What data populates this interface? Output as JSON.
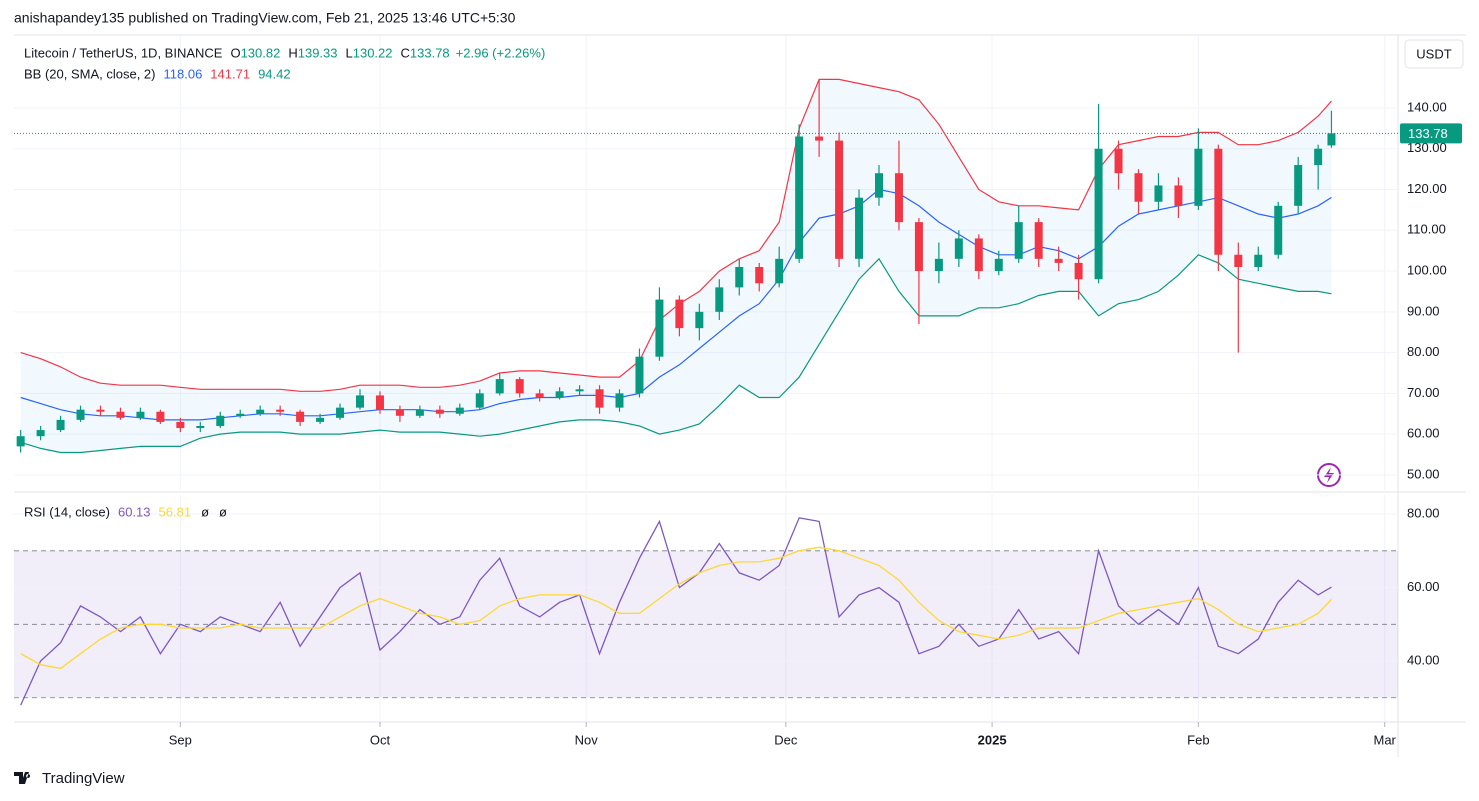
{
  "header": {
    "published": "anishapandey135 published on TradingView.com, Feb 21, 2025 13:46 UTC+5:30"
  },
  "footer": {
    "brand": "TradingView"
  },
  "chart_data": [
    {
      "type": "candlestick",
      "title": "Litecoin / TetherUS, 1D, BINANCE",
      "ohlc_labels": [
        "O",
        "H",
        "L",
        "C"
      ],
      "change": "+2.96 (+2.26%)",
      "currency": "USDT",
      "up_color": "#089981",
      "down_color": "#f23645",
      "x": [
        "2024-08-08",
        "2024-08-11",
        "2024-08-14",
        "2024-08-17",
        "2024-08-20",
        "2024-08-23",
        "2024-08-26",
        "2024-08-29",
        "2024-09-01",
        "2024-09-04",
        "2024-09-07",
        "2024-09-10",
        "2024-09-13",
        "2024-09-16",
        "2024-09-19",
        "2024-09-22",
        "2024-09-25",
        "2024-09-28",
        "2024-10-01",
        "2024-10-04",
        "2024-10-07",
        "2024-10-10",
        "2024-10-13",
        "2024-10-16",
        "2024-10-19",
        "2024-10-22",
        "2024-10-25",
        "2024-10-28",
        "2024-10-31",
        "2024-11-03",
        "2024-11-06",
        "2024-11-09",
        "2024-11-12",
        "2024-11-15",
        "2024-11-18",
        "2024-11-21",
        "2024-11-24",
        "2024-11-27",
        "2024-11-30",
        "2024-12-03",
        "2024-12-06",
        "2024-12-09",
        "2024-12-12",
        "2024-12-15",
        "2024-12-18",
        "2024-12-21",
        "2024-12-24",
        "2024-12-27",
        "2024-12-30",
        "2025-01-02",
        "2025-01-05",
        "2025-01-08",
        "2025-01-11",
        "2025-01-14",
        "2025-01-17",
        "2025-01-20",
        "2025-01-23",
        "2025-01-26",
        "2025-01-29",
        "2025-02-01",
        "2025-02-04",
        "2025-02-07",
        "2025-02-10",
        "2025-02-13",
        "2025-02-16",
        "2025-02-19",
        "2025-02-21"
      ],
      "open": [
        57,
        59.5,
        61,
        63.5,
        66,
        65.5,
        64,
        65.5,
        63,
        61.5,
        62,
        64.5,
        65,
        66,
        65.5,
        63,
        64,
        66.5,
        69.5,
        66,
        64.5,
        66,
        65,
        66.5,
        70,
        73.5,
        70,
        69,
        70.5,
        71,
        66.5,
        70,
        79,
        93,
        86,
        90,
        96,
        101,
        97,
        103,
        133,
        132,
        103,
        118,
        124,
        112,
        100,
        103,
        108,
        100,
        103,
        112,
        103,
        102,
        98,
        130,
        124,
        117,
        121,
        116,
        130,
        104,
        101,
        104,
        116,
        126,
        130.82
      ],
      "high": [
        61,
        62,
        64.5,
        67,
        67,
        66.5,
        66.5,
        66,
        64,
        63,
        65.5,
        66,
        67,
        67,
        66,
        65,
        67.5,
        71,
        70.5,
        67,
        67,
        67,
        67.5,
        71,
        75,
        74,
        71,
        71.5,
        72,
        72,
        71,
        81,
        96,
        94,
        92,
        98,
        103,
        102,
        106,
        136,
        147,
        134,
        120,
        126,
        132,
        113,
        107,
        110,
        109,
        105,
        116,
        113,
        106,
        104,
        141,
        132,
        125,
        124,
        123,
        135,
        131,
        107,
        106,
        117,
        128,
        131,
        139.33
      ],
      "low": [
        55.5,
        58.5,
        60.5,
        63,
        64.5,
        63.5,
        63.5,
        62.5,
        60.5,
        60.5,
        61.5,
        64,
        64.5,
        64.5,
        62,
        62.5,
        63.5,
        66,
        65,
        63,
        64,
        64,
        64.5,
        66,
        69.5,
        69,
        68,
        68.5,
        69.5,
        65,
        65.5,
        69,
        78,
        84,
        83,
        88,
        94,
        95,
        96,
        102,
        128,
        101,
        101,
        116,
        110,
        87,
        97,
        101,
        98,
        99,
        102,
        101,
        100,
        93,
        97,
        120,
        114,
        115,
        113,
        115,
        100,
        80,
        100,
        103,
        114,
        120,
        130.22
      ],
      "close": [
        59.5,
        61,
        63.5,
        66,
        65.5,
        64,
        65.5,
        63,
        61.5,
        62,
        64.5,
        65,
        66,
        65.5,
        63,
        64,
        66.5,
        69.5,
        66,
        64.5,
        66,
        65,
        66.5,
        70,
        73.5,
        70,
        69,
        70.5,
        71,
        66.5,
        70,
        79,
        93,
        86,
        90,
        96,
        101,
        97,
        103,
        133,
        132,
        103,
        118,
        124,
        112,
        100,
        103,
        108,
        100,
        103,
        112,
        103,
        102,
        98,
        130,
        124,
        117,
        121,
        116,
        130,
        104,
        101,
        104,
        116,
        126,
        130,
        133.78
      ],
      "bands": {
        "label": "BB (20, SMA, close, 2)",
        "fill": "#2196f3",
        "series": [
          {
            "color": "#2962ff",
            "values": [
              69,
              67.5,
              66,
              65,
              64.5,
              64.5,
              64,
              63.5,
              63.5,
              63.5,
              64,
              64.5,
              65,
              65,
              64.5,
              64.5,
              65,
              65.5,
              66,
              66,
              66,
              65.5,
              65.5,
              66,
              67.5,
              68.5,
              69,
              69,
              69.5,
              69.5,
              69,
              70,
              74,
              77,
              81,
              85,
              89,
              92,
              98,
              107,
              113,
              114,
              116,
              120,
              119,
              116,
              112,
              109,
              106,
              104,
              104,
              106,
              105,
              103,
              106,
              111,
              114,
              115,
              116,
              117,
              118,
              116,
              114,
              113,
              114,
              116,
              118.06
            ]
          },
          {
            "color": "#f23645",
            "values": [
              80,
              78.5,
              76.5,
              74,
              72.5,
              72,
              72,
              72,
              71.5,
              71,
              71,
              71,
              71,
              71,
              70.5,
              70.5,
              71,
              72,
              72,
              72,
              71.5,
              71.5,
              72,
              73,
              75,
              75.5,
              75.5,
              75,
              74.5,
              74,
              74,
              78,
              88,
              92,
              95,
              100,
              103,
              105,
              112,
              135,
              147,
              147,
              146,
              145,
              144,
              142,
              136,
              128,
              120,
              117,
              116,
              116,
              115.5,
              115,
              125,
              131,
              132,
              133,
              133,
              134,
              134,
              131,
              131,
              132,
              134,
              138,
              141.71
            ]
          },
          {
            "color": "#089981",
            "values": [
              58,
              56.5,
              55.5,
              55.5,
              56,
              56.5,
              57,
              57,
              57,
              59,
              60,
              60.5,
              60.5,
              60.5,
              60,
              60,
              60,
              60.5,
              61,
              60.5,
              60.5,
              60.5,
              60,
              59.5,
              60,
              61,
              62,
              63,
              63.5,
              63.5,
              63,
              62,
              60,
              61,
              62.5,
              67,
              72,
              69,
              69,
              74,
              82,
              90,
              98,
              103,
              95,
              89,
              89,
              89,
              91,
              91,
              92,
              94,
              95,
              95,
              89,
              92,
              93,
              95,
              99,
              104,
              102,
              98,
              97,
              96,
              95,
              95,
              94.42
            ]
          }
        ]
      },
      "ylim": [
        46.3,
        157.9
      ],
      "yticks": [
        {
          "value": 140,
          "label": "140.00"
        },
        {
          "value": 130,
          "label": "130.00"
        },
        {
          "value": 120,
          "label": "120.00"
        },
        {
          "value": 110,
          "label": "110.00"
        },
        {
          "value": 100,
          "label": "100.00"
        },
        {
          "value": 90,
          "label": "90.00"
        },
        {
          "value": 80,
          "label": "80.00"
        },
        {
          "value": 70,
          "label": "70.00"
        },
        {
          "value": 60,
          "label": "60.00"
        },
        {
          "value": 50,
          "label": "50.00"
        }
      ],
      "xlim": [
        "2024-08-07",
        "2025-03-03"
      ],
      "xticks": [
        {
          "value": "2024-09-01",
          "label": "Sep"
        },
        {
          "value": "2024-10-01",
          "label": "Oct"
        },
        {
          "value": "2024-11-01",
          "label": "Nov"
        },
        {
          "value": "2024-12-01",
          "label": "Dec"
        },
        {
          "value": "2025-01-01",
          "label": "2025"
        },
        {
          "value": "2025-02-01",
          "label": "Feb"
        },
        {
          "value": "2025-03-01",
          "label": "Mar"
        }
      ],
      "grid": true
    },
    {
      "type": "line",
      "title": "RSI (14, close)",
      "na": [
        "ø",
        "ø"
      ],
      "x": [
        "2024-08-08",
        "2024-08-11",
        "2024-08-14",
        "2024-08-17",
        "2024-08-20",
        "2024-08-23",
        "2024-08-26",
        "2024-08-29",
        "2024-09-01",
        "2024-09-04",
        "2024-09-07",
        "2024-09-10",
        "2024-09-13",
        "2024-09-16",
        "2024-09-19",
        "2024-09-22",
        "2024-09-25",
        "2024-09-28",
        "2024-10-01",
        "2024-10-04",
        "2024-10-07",
        "2024-10-10",
        "2024-10-13",
        "2024-10-16",
        "2024-10-19",
        "2024-10-22",
        "2024-10-25",
        "2024-10-28",
        "2024-10-31",
        "2024-11-03",
        "2024-11-06",
        "2024-11-09",
        "2024-11-12",
        "2024-11-15",
        "2024-11-18",
        "2024-11-21",
        "2024-11-24",
        "2024-11-27",
        "2024-11-30",
        "2024-12-03",
        "2024-12-06",
        "2024-12-09",
        "2024-12-12",
        "2024-12-15",
        "2024-12-18",
        "2024-12-21",
        "2024-12-24",
        "2024-12-27",
        "2024-12-30",
        "2025-01-02",
        "2025-01-05",
        "2025-01-08",
        "2025-01-11",
        "2025-01-14",
        "2025-01-17",
        "2025-01-20",
        "2025-01-23",
        "2025-01-26",
        "2025-01-29",
        "2025-02-01",
        "2025-02-04",
        "2025-02-07",
        "2025-02-10",
        "2025-02-13",
        "2025-02-16",
        "2025-02-19",
        "2025-02-21"
      ],
      "series": [
        {
          "color": "#7e57c2",
          "values": [
            28,
            40,
            45,
            55,
            52,
            48,
            52,
            42,
            50,
            48,
            52,
            50,
            48,
            56,
            44,
            52,
            60,
            64,
            43,
            48,
            54,
            50,
            52,
            62,
            68,
            55,
            52,
            56,
            58,
            42,
            56,
            68,
            78,
            60,
            64,
            72,
            64,
            62,
            66,
            79,
            78,
            52,
            58,
            60,
            56,
            42,
            44,
            50,
            44,
            46,
            54,
            46,
            48,
            42,
            70,
            55,
            50,
            54,
            50,
            60,
            44,
            42,
            46,
            56,
            62,
            58,
            60.13
          ]
        },
        {
          "color": "#fdd835",
          "values": [
            42,
            39,
            38,
            42,
            46,
            49,
            50,
            50,
            49,
            49,
            49,
            50,
            49,
            49,
            49,
            49,
            52,
            55,
            57,
            55,
            53,
            52,
            50,
            51,
            55,
            57,
            58,
            58,
            58,
            56,
            53,
            53,
            57,
            61,
            64,
            66,
            67,
            67,
            68,
            70,
            71,
            70,
            68,
            66,
            62,
            56,
            51,
            48,
            47,
            46,
            47,
            49,
            49,
            49,
            51,
            53,
            54,
            55,
            56,
            57,
            54,
            50,
            48,
            49,
            50,
            53,
            56.81
          ]
        }
      ],
      "levels": [
        70,
        50,
        30
      ],
      "band_color": "#7e57c2",
      "ylim": [
        23.4,
        85.2
      ],
      "yticks": [
        {
          "value": 80,
          "label": "80.00"
        },
        {
          "value": 60,
          "label": "60.00"
        },
        {
          "value": 40,
          "label": "40.00"
        }
      ]
    }
  ]
}
